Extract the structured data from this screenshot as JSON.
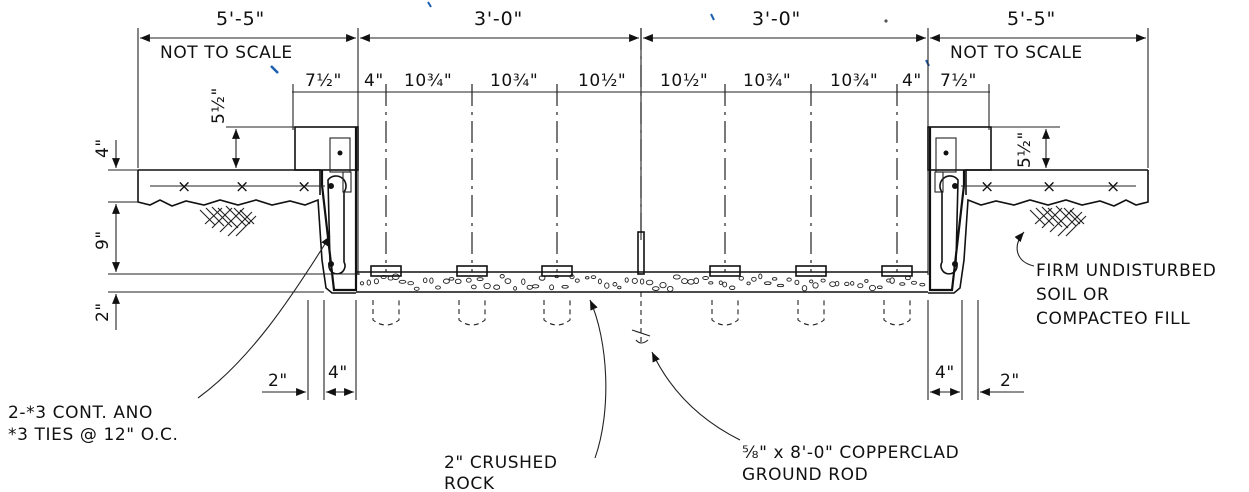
{
  "dimensions": {
    "overall_left": "5'-5\"",
    "center_left": "3'-0\"",
    "center_right": "3'-0\"",
    "overall_right": "5'-5\"",
    "not_to_scale_left": "NOT TO SCALE",
    "not_to_scale_right": "NOT TO SCALE",
    "spacing": [
      "7½\"",
      "4\"",
      "10¾\"",
      "10¾\"",
      "10½\"",
      "10½\"",
      "10¾\"",
      "10¾\"",
      "4\"",
      "7½\""
    ],
    "curb_rise_left": "5½\"",
    "curb_rise_right": "5½\"",
    "slab_thickness": "4\"",
    "footing_depth": "9\"",
    "base_depth": "2\"",
    "edge_2_left": "2\"",
    "wall_4_left": "4\"",
    "wall_4_right": "4\"",
    "edge_2_right": "2\""
  },
  "callouts": {
    "rebar_line1": "2-*3 CONT. ANO",
    "rebar_line2": "*3 TIES @ 12\" O.C.",
    "rock_line1": "2\" CRUSHED",
    "rock_line2": "ROCK",
    "rod_line1": "⅝\" x 8'-0\" COPPERCLAD",
    "rod_line2": "GROUND ROD",
    "soil_line1": "FIRM UNDISTURBED",
    "soil_line2": "SOIL OR",
    "soil_line3": "COMPACTEO FILL"
  }
}
